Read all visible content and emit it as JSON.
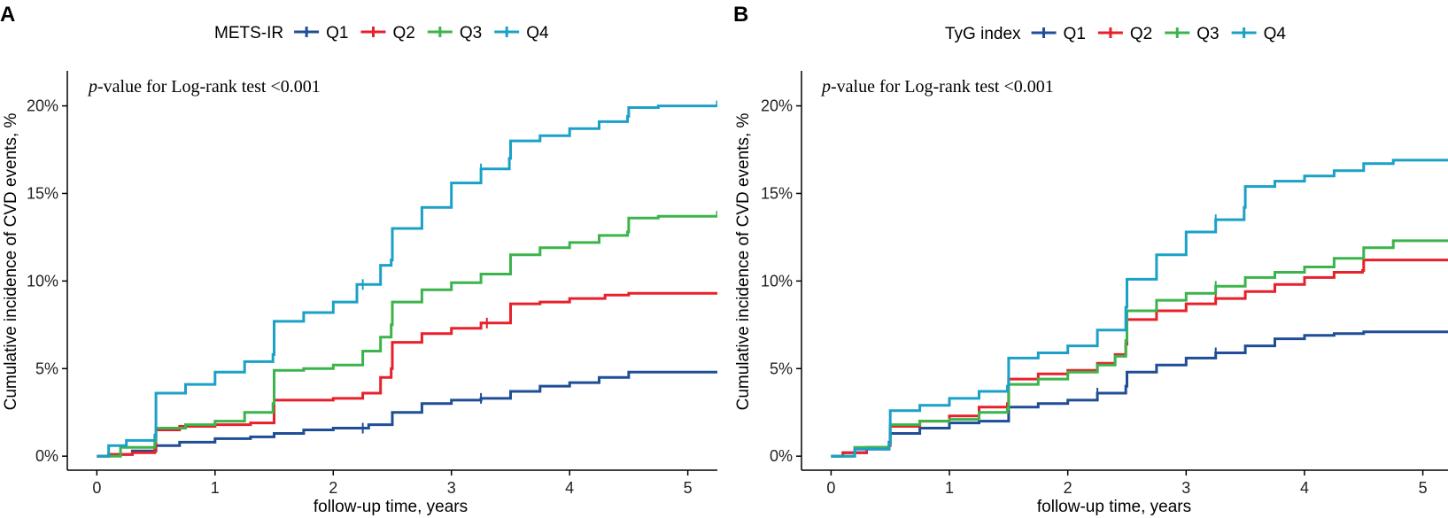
{
  "chart_data": [
    {
      "panel_label": "A",
      "type": "line",
      "style": "step",
      "legend_title": "METS-IR",
      "legend_position": "top",
      "annotation_italic": "p",
      "annotation_rest": "-value for Log-rank test <0.001",
      "xlabel": "follow-up time, years",
      "ylabel": "Cumulative incidence of CVD events, %",
      "xlim": [
        -0.25,
        5.25
      ],
      "ylim": [
        -0.8,
        22.0
      ],
      "xticks": [
        0,
        1,
        2,
        3,
        4,
        5
      ],
      "xtick_labels": [
        "0",
        "1",
        "2",
        "3",
        "4",
        "5"
      ],
      "yticks": [
        0,
        5,
        10,
        15,
        20
      ],
      "ytick_labels": [
        "0%",
        "5%",
        "10%",
        "15%",
        "20%"
      ],
      "series": [
        {
          "name": "Q1",
          "color": "#1f4e96",
          "x": [
            0,
            0.1,
            0.3,
            0.5,
            0.7,
            1.0,
            1.3,
            1.5,
            1.75,
            2.0,
            2.3,
            2.5,
            2.75,
            3.0,
            3.25,
            3.5,
            3.75,
            4.0,
            4.25,
            4.5,
            5.25
          ],
          "y": [
            0,
            0.1,
            0.3,
            0.6,
            0.8,
            1.0,
            1.1,
            1.3,
            1.5,
            1.6,
            1.8,
            2.5,
            3.0,
            3.2,
            3.3,
            3.7,
            4.0,
            4.2,
            4.5,
            4.8,
            4.8
          ],
          "censor_x": [
            2.25,
            3.25
          ]
        },
        {
          "name": "Q2",
          "color": "#e8202a",
          "x": [
            0,
            0.1,
            0.3,
            0.49,
            0.5,
            0.7,
            1.0,
            1.3,
            1.49,
            1.5,
            1.75,
            2.0,
            2.25,
            2.4,
            2.49,
            2.5,
            2.75,
            3.0,
            3.25,
            3.5,
            3.75,
            4.0,
            4.3,
            4.5,
            5.25
          ],
          "y": [
            0,
            0.1,
            0.2,
            0.4,
            1.5,
            1.7,
            1.8,
            1.9,
            1.9,
            3.2,
            3.2,
            3.3,
            3.6,
            4.5,
            5.0,
            6.5,
            7.0,
            7.3,
            7.6,
            8.7,
            8.8,
            9.0,
            9.2,
            9.3,
            9.3
          ],
          "censor_x": [
            3.3
          ]
        },
        {
          "name": "Q3",
          "color": "#3cb44b",
          "x": [
            0,
            0.2,
            0.49,
            0.5,
            0.75,
            1.0,
            1.25,
            1.49,
            1.5,
            1.75,
            2.0,
            2.25,
            2.4,
            2.49,
            2.5,
            2.75,
            3.0,
            3.25,
            3.5,
            3.75,
            4.0,
            4.25,
            4.49,
            4.5,
            4.75,
            5.25
          ],
          "y": [
            0,
            0.5,
            0.8,
            1.6,
            1.8,
            2.0,
            2.5,
            3.0,
            4.9,
            5.0,
            5.2,
            6.0,
            6.8,
            7.5,
            8.8,
            9.5,
            9.9,
            10.4,
            11.5,
            11.9,
            12.2,
            12.6,
            12.8,
            13.6,
            13.7,
            14.0
          ],
          "censor_x": []
        },
        {
          "name": "Q4",
          "color": "#1ba1c7",
          "x": [
            0,
            0.1,
            0.25,
            0.49,
            0.5,
            0.75,
            1.0,
            1.25,
            1.49,
            1.5,
            1.75,
            2.0,
            2.2,
            2.4,
            2.49,
            2.5,
            2.75,
            3.0,
            3.25,
            3.49,
            3.5,
            3.75,
            4.0,
            4.25,
            4.49,
            4.5,
            4.75,
            5.25
          ],
          "y": [
            0,
            0.6,
            0.9,
            1.2,
            3.6,
            4.1,
            4.8,
            5.4,
            5.8,
            7.7,
            8.2,
            8.8,
            9.8,
            10.9,
            11.2,
            13.0,
            14.2,
            15.6,
            16.4,
            17.0,
            18.0,
            18.3,
            18.7,
            19.1,
            19.4,
            19.9,
            20.0,
            20.3
          ],
          "censor_x": [
            2.25,
            3.25
          ]
        }
      ]
    },
    {
      "panel_label": "B",
      "type": "line",
      "style": "step",
      "legend_title": "TyG index",
      "legend_position": "top",
      "annotation_italic": "p",
      "annotation_rest": "-value for Log-rank test <0.001",
      "xlabel": "follow-up time, years",
      "ylabel": "Cumulative incidence of CVD events, %",
      "xlim": [
        -0.25,
        5.25
      ],
      "ylim": [
        -0.8,
        22.0
      ],
      "xticks": [
        0,
        1,
        2,
        3,
        4,
        5
      ],
      "xtick_labels": [
        "0",
        "1",
        "2",
        "3",
        "4",
        "5"
      ],
      "yticks": [
        0,
        5,
        10,
        15,
        20
      ],
      "ytick_labels": [
        "0%",
        "5%",
        "10%",
        "15%",
        "20%"
      ],
      "series": [
        {
          "name": "Q1",
          "color": "#1f4e96",
          "x": [
            0,
            0.1,
            0.3,
            0.49,
            0.5,
            0.75,
            1.0,
            1.25,
            1.49,
            1.5,
            1.75,
            2.0,
            2.25,
            2.49,
            2.5,
            2.75,
            3.0,
            3.25,
            3.5,
            3.75,
            4.0,
            4.25,
            4.5,
            5.25
          ],
          "y": [
            0,
            0.2,
            0.5,
            0.8,
            1.3,
            1.6,
            1.9,
            2.0,
            2.0,
            2.8,
            3.0,
            3.2,
            3.6,
            4.0,
            4.8,
            5.2,
            5.6,
            5.9,
            6.3,
            6.7,
            6.9,
            7.0,
            7.1,
            7.3
          ],
          "censor_x": [
            2.25,
            3.25
          ]
        },
        {
          "name": "Q2",
          "color": "#e8202a",
          "x": [
            0,
            0.1,
            0.3,
            0.49,
            0.5,
            0.75,
            1.0,
            1.25,
            1.49,
            1.5,
            1.75,
            2.0,
            2.25,
            2.4,
            2.49,
            2.5,
            2.75,
            3.0,
            3.25,
            3.5,
            3.75,
            4.0,
            4.25,
            4.49,
            4.5,
            5.25
          ],
          "y": [
            0,
            0.2,
            0.4,
            0.6,
            1.7,
            2.0,
            2.3,
            2.8,
            3.0,
            4.4,
            4.7,
            4.9,
            5.3,
            5.8,
            6.4,
            7.8,
            8.3,
            8.7,
            9.0,
            9.4,
            9.8,
            10.2,
            10.5,
            10.6,
            11.2,
            11.2
          ],
          "censor_x": [
            3.25
          ]
        },
        {
          "name": "Q3",
          "color": "#3cb44b",
          "x": [
            0,
            0.2,
            0.49,
            0.5,
            0.75,
            1.0,
            1.25,
            1.49,
            1.5,
            1.75,
            2.0,
            2.25,
            2.4,
            2.49,
            2.5,
            2.75,
            3.0,
            3.25,
            3.5,
            3.75,
            4.0,
            4.25,
            4.5,
            4.75,
            5.25
          ],
          "y": [
            0,
            0.5,
            0.7,
            1.8,
            2.0,
            2.1,
            2.5,
            2.7,
            4.1,
            4.4,
            4.8,
            5.2,
            5.7,
            6.6,
            8.3,
            8.9,
            9.3,
            9.7,
            10.2,
            10.5,
            10.8,
            11.3,
            11.9,
            12.3,
            12.5
          ],
          "censor_x": [
            3.25
          ]
        },
        {
          "name": "Q4",
          "color": "#1ba1c7",
          "x": [
            0,
            0.2,
            0.49,
            0.5,
            0.75,
            1.0,
            1.25,
            1.49,
            1.5,
            1.75,
            2.0,
            2.25,
            2.49,
            2.5,
            2.75,
            3.0,
            3.25,
            3.49,
            3.5,
            3.75,
            4.0,
            4.25,
            4.5,
            4.75,
            5.25
          ],
          "y": [
            0,
            0.4,
            0.7,
            2.6,
            2.9,
            3.3,
            3.7,
            4.0,
            5.6,
            5.9,
            6.3,
            7.2,
            8.5,
            10.1,
            11.5,
            12.8,
            13.5,
            14.2,
            15.4,
            15.7,
            16.0,
            16.3,
            16.7,
            16.9,
            17.2
          ],
          "censor_x": [
            3.25
          ]
        }
      ]
    }
  ]
}
